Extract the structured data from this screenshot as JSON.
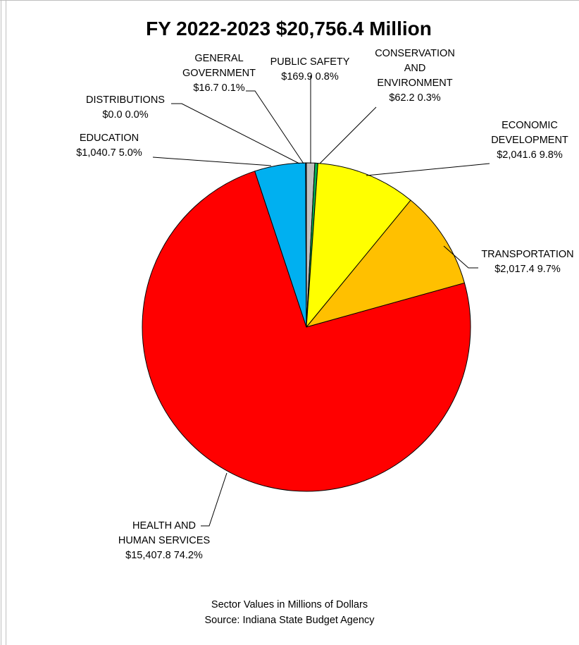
{
  "chart_data": {
    "type": "pie",
    "title": "FY 2022-2023  $20,756.4 Million",
    "slices": [
      {
        "key": "public_safety",
        "label_lines": [
          "PUBLIC SAFETY"
        ],
        "value_text": "$169.9  0.8%",
        "value": 169.9,
        "percent": 0.8,
        "color": "#c0c0c0"
      },
      {
        "key": "conservation",
        "label_lines": [
          "CONSERVATION",
          "AND",
          "ENVIRONMENT"
        ],
        "value_text": "$62.2  0.3%",
        "value": 62.2,
        "percent": 0.3,
        "color": "#00b050"
      },
      {
        "key": "economic_development",
        "label_lines": [
          "ECONOMIC",
          "DEVELOPMENT"
        ],
        "value_text": "$2,041.6  9.8%",
        "value": 2041.6,
        "percent": 9.8,
        "color": "#ffff00"
      },
      {
        "key": "transportation",
        "label_lines": [
          "TRANSPORTATION"
        ],
        "value_text": "$2,017.4  9.7%",
        "value": 2017.4,
        "percent": 9.7,
        "color": "#ffc000"
      },
      {
        "key": "health_human_services",
        "label_lines": [
          "HEALTH AND",
          "HUMAN SERVICES"
        ],
        "value_text": "$15,407.8  74.2%",
        "value": 15407.8,
        "percent": 74.2,
        "color": "#ff0000"
      },
      {
        "key": "education",
        "label_lines": [
          "EDUCATION"
        ],
        "value_text": "$1,040.7  5.0%",
        "value": 1040.7,
        "percent": 5.0,
        "color": "#00b0f0"
      },
      {
        "key": "distributions",
        "label_lines": [
          "DISTRIBUTIONS"
        ],
        "value_text": "$0.0  0.0%",
        "value": 0.0,
        "percent": 0.0,
        "color": "#7030a0"
      },
      {
        "key": "general_government",
        "label_lines": [
          "GENERAL",
          "GOVERNMENT"
        ],
        "value_text": "$16.7  0.1%",
        "value": 16.7,
        "percent": 0.1,
        "color": "#5b9bd5"
      }
    ],
    "notes": [
      "Sector Values in Millions of Dollars",
      "Source:  Indiana State Budget Agency"
    ]
  }
}
